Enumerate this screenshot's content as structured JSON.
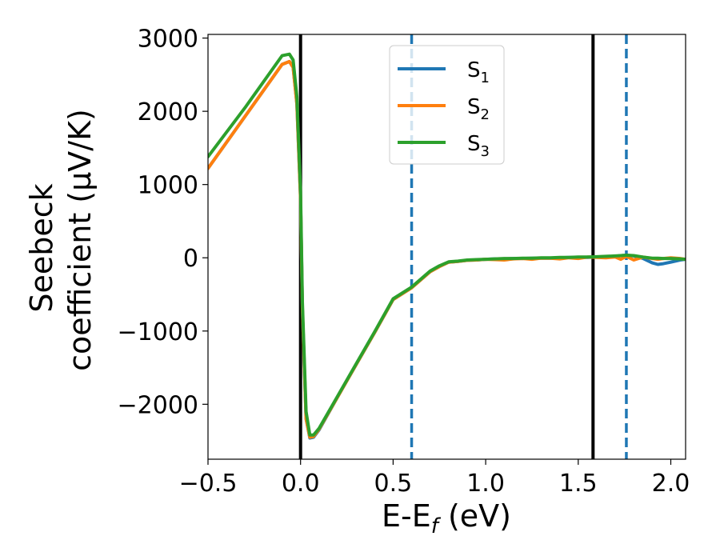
{
  "chart_data": {
    "type": "line",
    "xlabel": "E-E$_f$ (eV)",
    "xlabel_parts": {
      "main": "E-E",
      "sub": "f",
      "unit": " (eV)"
    },
    "ylabel_line1": "Seebeck",
    "ylabel_line2": "coefficient  (μV/K)",
    "xlim": [
      -0.5,
      2.08
    ],
    "ylim": [
      -2750,
      3050
    ],
    "xticks": [
      -0.5,
      0.0,
      0.5,
      1.0,
      1.5,
      2.0
    ],
    "xtick_labels": [
      "−0.5",
      "0.0",
      "0.5",
      "1.0",
      "1.5",
      "2.0"
    ],
    "yticks": [
      -2000,
      -1000,
      0,
      1000,
      2000,
      3000
    ],
    "ytick_labels": [
      "−2000",
      "−1000",
      "0",
      "1000",
      "2000",
      "3000"
    ],
    "grid": false,
    "legend_placement": "upper-center",
    "vlines": [
      {
        "x": 0.0,
        "style": "solid",
        "color": "#000000"
      },
      {
        "x": 1.58,
        "style": "solid",
        "color": "#000000"
      },
      {
        "x": 0.6,
        "style": "dashed",
        "color": "#1f77b4"
      },
      {
        "x": 1.76,
        "style": "dashed",
        "color": "#1f77b4"
      }
    ],
    "series": [
      {
        "name": "S",
        "sub": "1",
        "color": "#1f77b4",
        "x": [
          -0.5,
          -0.3,
          -0.1,
          -0.06,
          -0.04,
          -0.02,
          0.0,
          0.01,
          0.03,
          0.05,
          0.07,
          0.1,
          0.2,
          0.3,
          0.4,
          0.5,
          0.6,
          0.7,
          0.75,
          0.8,
          0.85,
          0.9,
          0.95,
          1.0,
          1.05,
          1.1,
          1.15,
          1.2,
          1.25,
          1.3,
          1.35,
          1.4,
          1.45,
          1.5,
          1.55,
          1.6,
          1.65,
          1.7,
          1.73,
          1.76,
          1.8,
          1.85,
          1.9,
          1.93,
          1.96,
          2.0,
          2.05,
          2.08
        ],
        "values": [
          1220,
          1930,
          2640,
          2680,
          2600,
          2100,
          800,
          -700,
          -2200,
          -2460,
          -2450,
          -2350,
          -1900,
          -1460,
          -1020,
          -570,
          -410,
          -190,
          -120,
          -60,
          -50,
          -35,
          -30,
          -20,
          -15,
          -15,
          -10,
          -10,
          -5,
          -5,
          -5,
          0,
          5,
          5,
          5,
          10,
          15,
          20,
          30,
          35,
          25,
          -10,
          -70,
          -90,
          -80,
          -60,
          -30,
          -20
        ]
      },
      {
        "name": "S",
        "sub": "2",
        "color": "#ff7f0e",
        "x": [
          -0.5,
          -0.3,
          -0.1,
          -0.06,
          -0.04,
          -0.02,
          0.0,
          0.01,
          0.03,
          0.05,
          0.07,
          0.1,
          0.2,
          0.3,
          0.4,
          0.5,
          0.6,
          0.7,
          0.75,
          0.8,
          0.85,
          0.9,
          0.95,
          1.0,
          1.05,
          1.1,
          1.15,
          1.2,
          1.25,
          1.3,
          1.35,
          1.4,
          1.45,
          1.5,
          1.55,
          1.6,
          1.65,
          1.7,
          1.73,
          1.76,
          1.8,
          1.85,
          1.9,
          1.93,
          1.96,
          2.0,
          2.05,
          2.08
        ],
        "values": [
          1220,
          1930,
          2640,
          2680,
          2600,
          2100,
          800,
          -700,
          -2200,
          -2450,
          -2440,
          -2340,
          -1900,
          -1460,
          -1020,
          -570,
          -410,
          -190,
          -120,
          -60,
          -50,
          -35,
          -30,
          -20,
          -25,
          -30,
          -15,
          -10,
          -20,
          -5,
          -5,
          -15,
          0,
          -10,
          10,
          5,
          0,
          10,
          -20,
          20,
          -30,
          10,
          -10,
          -20,
          -10,
          0,
          -10,
          -20
        ]
      },
      {
        "name": "S",
        "sub": "3",
        "color": "#2ca02c",
        "x": [
          -0.5,
          -0.3,
          -0.1,
          -0.06,
          -0.04,
          -0.02,
          0.0,
          0.01,
          0.03,
          0.05,
          0.07,
          0.1,
          0.2,
          0.3,
          0.4,
          0.5,
          0.6,
          0.7,
          0.75,
          0.8,
          0.85,
          0.9,
          0.95,
          1.0,
          1.05,
          1.1,
          1.15,
          1.2,
          1.25,
          1.3,
          1.35,
          1.4,
          1.45,
          1.5,
          1.55,
          1.6,
          1.65,
          1.7,
          1.73,
          1.76,
          1.8,
          1.85,
          1.9,
          1.93,
          1.96,
          2.0,
          2.05,
          2.08
        ],
        "values": [
          1380,
          2050,
          2760,
          2780,
          2700,
          2200,
          900,
          -600,
          -2100,
          -2420,
          -2420,
          -2330,
          -1890,
          -1450,
          -1010,
          -560,
          -400,
          -180,
          -110,
          -55,
          -45,
          -30,
          -25,
          -20,
          -15,
          -10,
          -10,
          -5,
          -5,
          0,
          0,
          5,
          5,
          10,
          10,
          15,
          20,
          25,
          30,
          35,
          30,
          10,
          -5,
          -5,
          -10,
          -10,
          -15,
          -20
        ]
      }
    ]
  }
}
